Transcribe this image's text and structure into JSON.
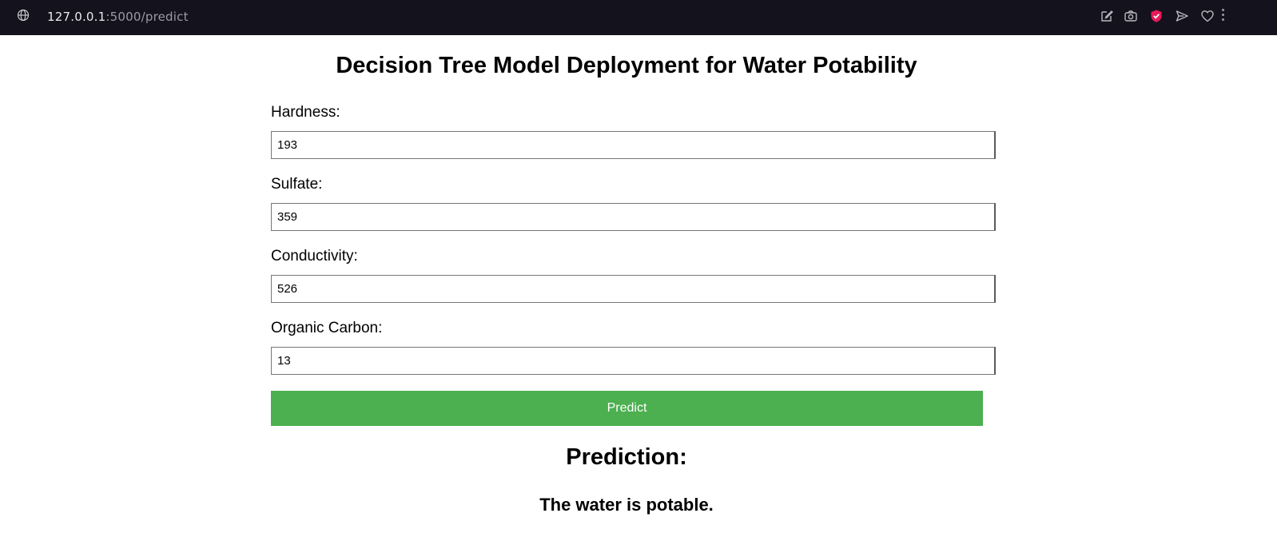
{
  "browser": {
    "url_host": "127.0.0.1",
    "url_path": ":5000/predict",
    "icons": [
      "globe-icon",
      "edit-icon",
      "camera-icon",
      "shield-icon",
      "send-icon",
      "heart-icon",
      "more-icon"
    ],
    "shield_color": "#e8195a"
  },
  "page": {
    "title": "Decision Tree Model Deployment for Water Potability",
    "fields": [
      {
        "label": "Hardness:",
        "value": "193"
      },
      {
        "label": "Sulfate:",
        "value": "359"
      },
      {
        "label": "Conductivity:",
        "value": "526"
      },
      {
        "label": "Organic Carbon:",
        "value": "13"
      }
    ],
    "predict_label": "Predict",
    "button_color": "#4caf50",
    "prediction_heading": "Prediction:",
    "prediction_text": "The water is potable."
  }
}
